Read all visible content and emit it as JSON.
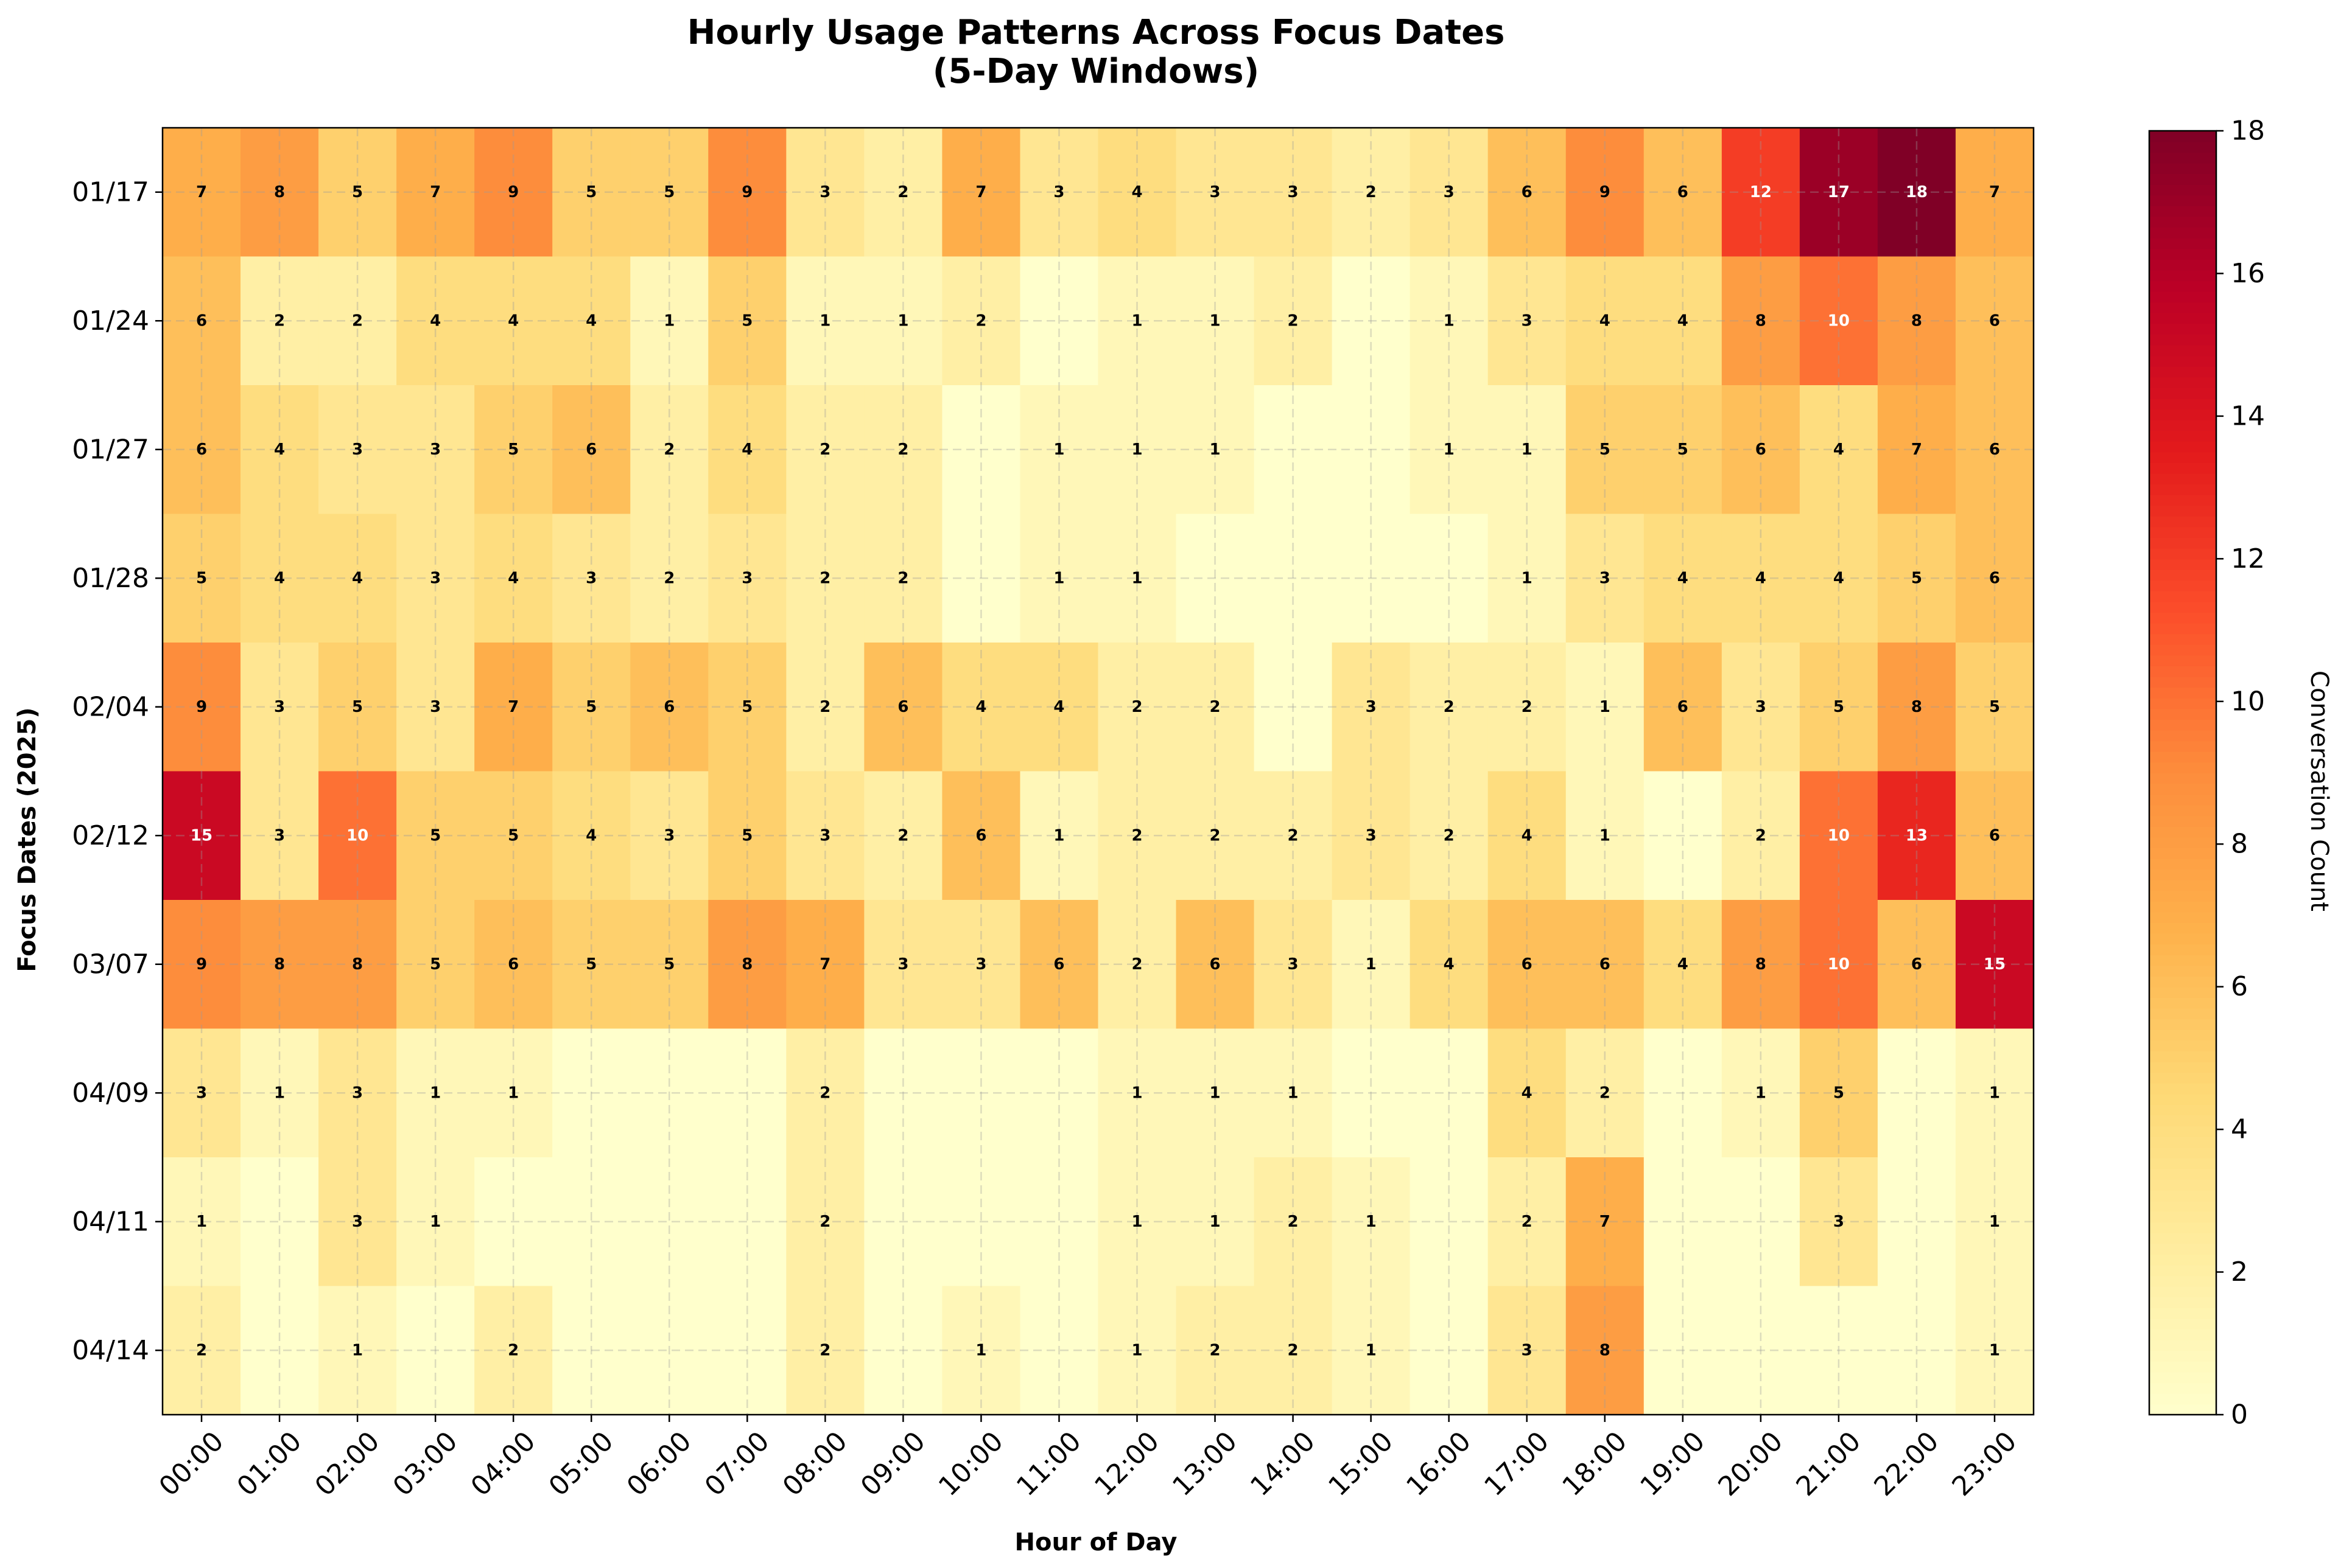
{
  "chart_data": {
    "type": "heatmap",
    "title": "Hourly Usage Patterns Across Focus Dates",
    "subtitle": "(5-Day Windows)",
    "xlabel": "Hour of Day",
    "ylabel": "Focus Dates (2025)",
    "colorbar_label": "Conversation Count",
    "colorbar_ticks": [
      0,
      2,
      4,
      6,
      8,
      10,
      12,
      14,
      16,
      18
    ],
    "value_range": [
      0,
      18
    ],
    "colormap": "YlOrRd",
    "grid": true,
    "x": [
      "00:00",
      "01:00",
      "02:00",
      "03:00",
      "04:00",
      "05:00",
      "06:00",
      "07:00",
      "08:00",
      "09:00",
      "10:00",
      "11:00",
      "12:00",
      "13:00",
      "14:00",
      "15:00",
      "16:00",
      "17:00",
      "18:00",
      "19:00",
      "20:00",
      "21:00",
      "22:00",
      "23:00"
    ],
    "y": [
      "01/17",
      "01/24",
      "01/27",
      "01/28",
      "02/04",
      "02/12",
      "03/07",
      "04/09",
      "04/11",
      "04/14"
    ],
    "values": [
      [
        7,
        8,
        5,
        7,
        9,
        5,
        5,
        9,
        3,
        2,
        7,
        3,
        4,
        3,
        3,
        2,
        3,
        6,
        9,
        6,
        12,
        17,
        18,
        7
      ],
      [
        6,
        2,
        2,
        4,
        4,
        4,
        1,
        5,
        1,
        1,
        2,
        0,
        1,
        1,
        2,
        0,
        1,
        3,
        4,
        4,
        8,
        10,
        8,
        6
      ],
      [
        6,
        4,
        3,
        3,
        5,
        6,
        2,
        4,
        2,
        2,
        0,
        1,
        1,
        1,
        0,
        0,
        1,
        1,
        5,
        5,
        6,
        4,
        7,
        6
      ],
      [
        5,
        4,
        4,
        3,
        4,
        3,
        2,
        3,
        2,
        2,
        0,
        1,
        1,
        0,
        0,
        0,
        0,
        1,
        3,
        4,
        4,
        4,
        5,
        6
      ],
      [
        9,
        3,
        5,
        3,
        7,
        5,
        6,
        5,
        2,
        6,
        4,
        4,
        2,
        2,
        0,
        3,
        2,
        2,
        1,
        6,
        3,
        5,
        8,
        5
      ],
      [
        15,
        3,
        10,
        5,
        5,
        4,
        3,
        5,
        3,
        2,
        6,
        1,
        2,
        2,
        2,
        3,
        2,
        4,
        1,
        0,
        2,
        10,
        13,
        6
      ],
      [
        9,
        8,
        8,
        5,
        6,
        5,
        5,
        8,
        7,
        3,
        3,
        6,
        2,
        6,
        3,
        1,
        4,
        6,
        6,
        4,
        8,
        10,
        6,
        15
      ],
      [
        3,
        1,
        3,
        1,
        1,
        0,
        0,
        0,
        2,
        0,
        0,
        0,
        1,
        1,
        1,
        0,
        0,
        4,
        2,
        0,
        1,
        5,
        0,
        1
      ],
      [
        1,
        0,
        3,
        1,
        0,
        0,
        0,
        0,
        2,
        0,
        0,
        0,
        1,
        1,
        2,
        1,
        0,
        2,
        7,
        0,
        0,
        3,
        0,
        1
      ],
      [
        2,
        0,
        1,
        0,
        2,
        0,
        0,
        0,
        2,
        0,
        1,
        0,
        1,
        2,
        2,
        1,
        0,
        3,
        8,
        0,
        0,
        0,
        0,
        1
      ]
    ]
  }
}
